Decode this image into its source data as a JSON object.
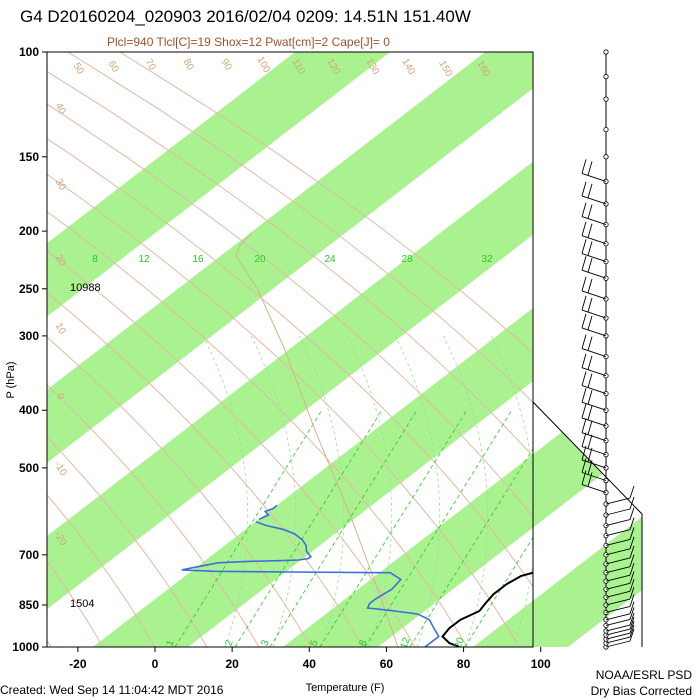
{
  "title": "G4 D20160204_020903 2016/02/04 0209: 14.51N 151.40W",
  "subtitle": "Plcl=940 Tlcl[C]=19 Shox=12 Pwat[cm]=2 Cape[J]= 0",
  "credit_left": "Created: Wed Sep 14 11:04:42 MDT 2016",
  "credit_right_1": "NOAA/ESRL PSD",
  "credit_right_2": "Dry Bias Corrected",
  "colors": {
    "band": "#aaf28f",
    "temperature": "#000000",
    "dewpoint": "#3a6fdc",
    "dry_adiabat": "#e3b9a5",
    "mixing_ratio": "#22cc22",
    "moist_adiabat": "#99dd99",
    "parcel": "#d2b48c",
    "theta_label": "#d2a679"
  },
  "chart_data": {
    "type": "skew-t",
    "xlabel": "Temperature (F)",
    "ylabel": "P (hPa)",
    "x_ticks": [
      "-20",
      "0",
      "20",
      "40",
      "60",
      "80",
      "100"
    ],
    "x_tick_values": [
      -20,
      0,
      20,
      40,
      60,
      80,
      100
    ],
    "xlim": [
      -28,
      98
    ],
    "pressure_ticks": [
      "100",
      "150",
      "200",
      "250",
      "300",
      "400",
      "500",
      "700",
      "850",
      "1000"
    ],
    "pressure_tick_values": [
      100,
      150,
      200,
      250,
      300,
      400,
      500,
      700,
      850,
      1000
    ],
    "ylim": [
      1000,
      100
    ],
    "isotherm_labels": [
      "30",
      "20",
      "10",
      "0",
      "10",
      "20",
      "30"
    ],
    "isotherm_label_values": [
      30,
      20,
      10,
      0,
      -10,
      -20,
      -30
    ],
    "theta_labels": [
      "50",
      "60",
      "70",
      "80",
      "90",
      "100",
      "110",
      "120",
      "130",
      "140",
      "150",
      "160"
    ],
    "theta_label_values": [
      50,
      60,
      70,
      80,
      90,
      100,
      110,
      120,
      130,
      140,
      150,
      160
    ],
    "mixing_ratio_labels_upper": [
      "8",
      "12",
      "16",
      "20",
      "24",
      "28",
      "32"
    ],
    "mixing_ratio_labels_upper_values": [
      8,
      12,
      16,
      20,
      24,
      28,
      32
    ],
    "mixing_ratio_labels_lower": [
      "1",
      "2",
      "3",
      "5",
      "8",
      "12",
      "20"
    ],
    "mixing_ratio_labels_lower_values": [
      1,
      2,
      3,
      5,
      8,
      12,
      20
    ],
    "height_labels": [
      {
        "text": "10988",
        "p": 250
      },
      {
        "text": "1504",
        "p": 850
      }
    ],
    "series": [
      {
        "name": "temperature",
        "points": [
          {
            "p": 1000,
            "x": 79
          },
          {
            "p": 985,
            "x": 75
          },
          {
            "p": 960,
            "x": 71
          },
          {
            "p": 930,
            "x": 70
          },
          {
            "p": 900,
            "x": 70
          },
          {
            "p": 870,
            "x": 72
          },
          {
            "p": 845,
            "x": 71
          },
          {
            "p": 815,
            "x": 70
          },
          {
            "p": 785,
            "x": 70
          },
          {
            "p": 760,
            "x": 71
          },
          {
            "p": 740,
            "x": 75
          },
          {
            "p": 720,
            "x": 78
          },
          {
            "p": 700,
            "x": 77
          },
          {
            "p": 680,
            "x": 76
          },
          {
            "p": 650,
            "x": 75
          },
          {
            "p": 620,
            "x": 73
          },
          {
            "p": 580,
            "x": 70
          },
          {
            "p": 540,
            "x": 67
          },
          {
            "p": 510,
            "x": 65
          },
          {
            "p": 490,
            "x": 65
          },
          {
            "p": 470,
            "x": 63
          },
          {
            "p": 450,
            "x": 64
          },
          {
            "p": 425,
            "x": 64
          },
          {
            "p": 400,
            "x": 64
          },
          {
            "p": 370,
            "x": 60
          },
          {
            "p": 340,
            "x": 56
          },
          {
            "p": 310,
            "x": 51
          },
          {
            "p": 280,
            "x": 47
          },
          {
            "p": 255,
            "x": 43
          },
          {
            "p": 235,
            "x": 41
          },
          {
            "p": 215,
            "x": 38
          },
          {
            "p": 195,
            "x": 36
          },
          {
            "p": 180,
            "x": 35
          },
          {
            "p": 172,
            "x": 33
          }
        ]
      },
      {
        "name": "dewpoint",
        "segments": [
          [
            {
              "p": 1000,
              "x": 70
            },
            {
              "p": 960,
              "x": 70
            },
            {
              "p": 930,
              "x": 66
            },
            {
              "p": 900,
              "x": 62
            },
            {
              "p": 880,
              "x": 57
            },
            {
              "p": 870,
              "x": 50
            },
            {
              "p": 860,
              "x": 42
            },
            {
              "p": 845,
              "x": 41
            },
            {
              "p": 830,
              "x": 41
            },
            {
              "p": 800,
              "x": 42
            },
            {
              "p": 770,
              "x": 41
            },
            {
              "p": 750,
              "x": 36
            },
            {
              "p": 748,
              "x": 10
            },
            {
              "p": 746,
              "x": -10
            },
            {
              "p": 742,
              "x": -19
            },
            {
              "p": 736,
              "x": -17
            },
            {
              "p": 722,
              "x": -12
            },
            {
              "p": 718,
              "x": -5
            },
            {
              "p": 716,
              "x": 3
            },
            {
              "p": 714,
              "x": 8
            },
            {
              "p": 710,
              "x": 10
            },
            {
              "p": 705,
              "x": 10
            },
            {
              "p": 700,
              "x": 9
            },
            {
              "p": 690,
              "x": 7
            },
            {
              "p": 675,
              "x": 5
            },
            {
              "p": 660,
              "x": 2
            },
            {
              "p": 645,
              "x": -2
            },
            {
              "p": 635,
              "x": -6
            },
            {
              "p": 625,
              "x": -12
            },
            {
              "p": 616,
              "x": -16
            }
          ],
          [
            {
              "p": 610,
              "x": -16
            },
            {
              "p": 600,
              "x": -15
            },
            {
              "p": 592,
              "x": -17
            },
            {
              "p": 585,
              "x": -16
            },
            {
              "p": 578,
              "x": -16
            }
          ],
          [
            {
              "p": 272,
              "x": -5
            },
            {
              "p": 268,
              "x": -4
            },
            {
              "p": 263,
              "x": -6
            },
            {
              "p": 258,
              "x": -5
            },
            {
              "p": 253,
              "x": -6
            }
          ]
        ]
      }
    ],
    "wind_barbs": [
      {
        "p": 1000
      },
      {
        "p": 985
      },
      {
        "p": 970
      },
      {
        "p": 955
      },
      {
        "p": 940
      },
      {
        "p": 920
      },
      {
        "p": 900
      },
      {
        "p": 875
      },
      {
        "p": 850
      },
      {
        "p": 825
      },
      {
        "p": 800
      },
      {
        "p": 775
      },
      {
        "p": 750
      },
      {
        "p": 725
      },
      {
        "p": 700
      },
      {
        "p": 675
      },
      {
        "p": 650
      },
      {
        "p": 625
      },
      {
        "p": 600
      },
      {
        "p": 575
      },
      {
        "p": 550
      },
      {
        "p": 525
      },
      {
        "p": 500
      },
      {
        "p": 475
      },
      {
        "p": 450
      },
      {
        "p": 425
      },
      {
        "p": 400
      },
      {
        "p": 375
      },
      {
        "p": 350
      },
      {
        "p": 325
      },
      {
        "p": 300
      },
      {
        "p": 280
      },
      {
        "p": 260
      },
      {
        "p": 240
      },
      {
        "p": 225
      },
      {
        "p": 210
      },
      {
        "p": 195
      },
      {
        "p": 180
      },
      {
        "p": 165
      },
      {
        "p": 150
      },
      {
        "p": 135
      },
      {
        "p": 120
      },
      {
        "p": 110
      },
      {
        "p": 100
      }
    ]
  }
}
